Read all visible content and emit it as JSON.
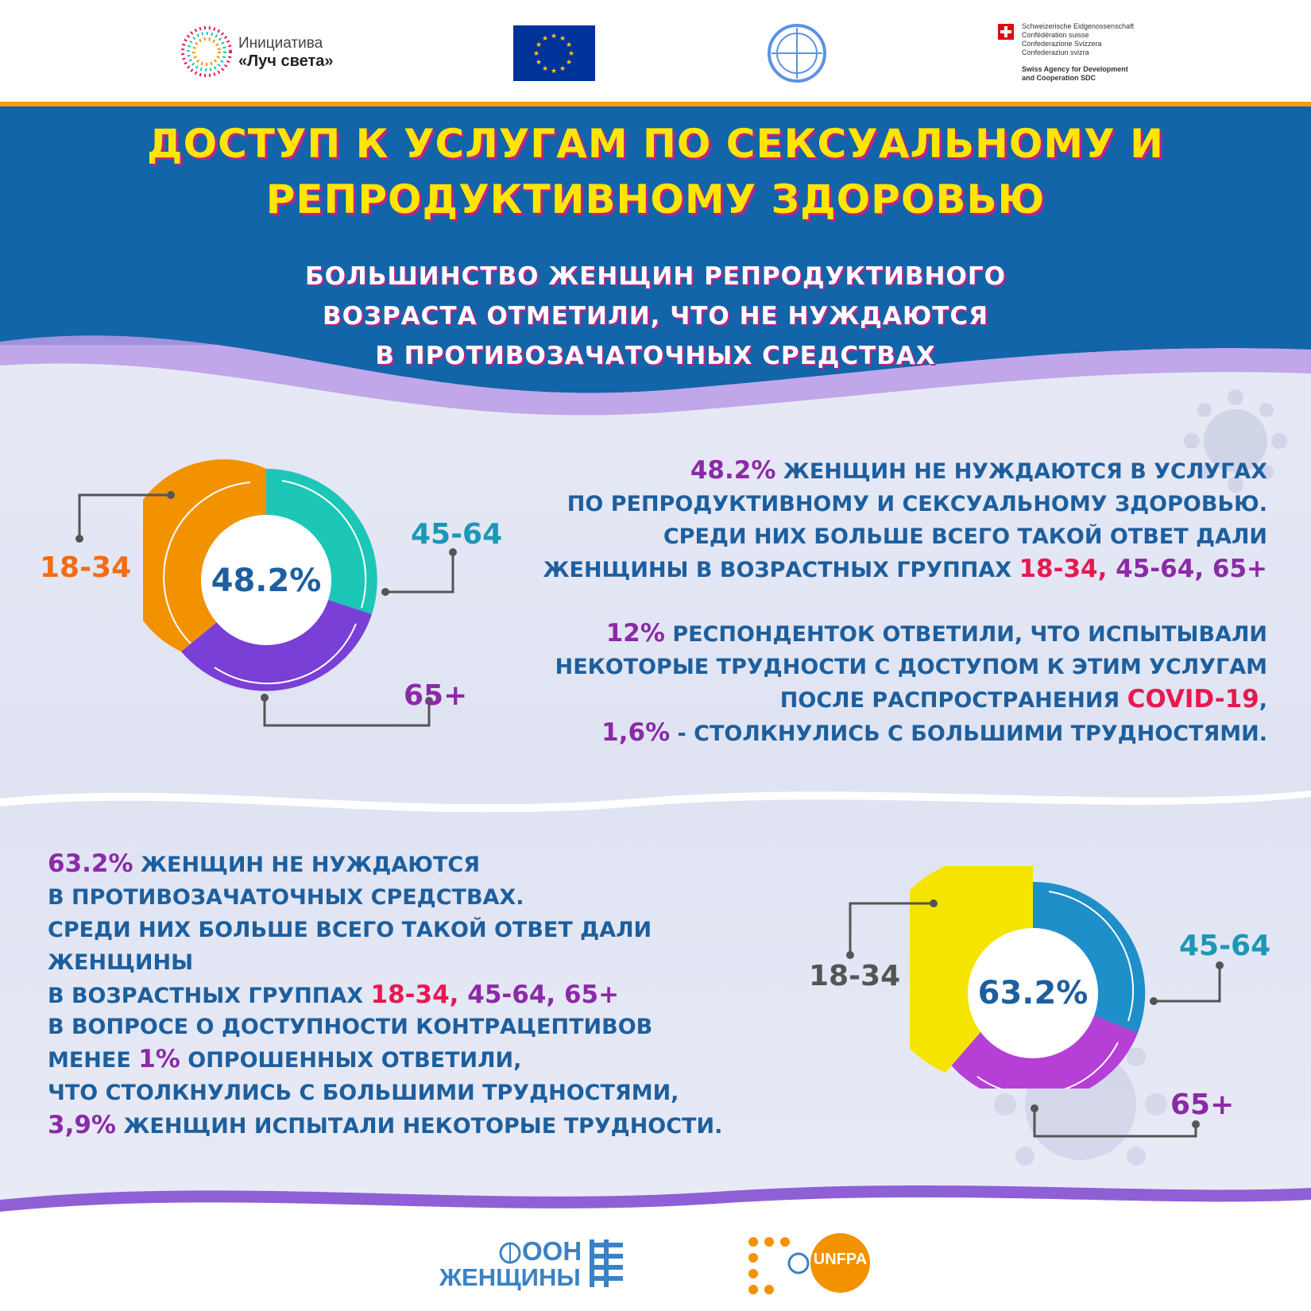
{
  "logos": {
    "luch_line1": "Инициатива",
    "luch_line2": "«Луч света»",
    "swiss_lines": [
      "Schweizerische Eidgenossenschaft",
      "Confédération suisse",
      "Confederazione Svizzera",
      "Confederaziun svizra"
    ],
    "sdc_lines": [
      "Swiss Agency for Development",
      "and Cooperation SDC"
    ],
    "un_women_line1": "ООН",
    "un_women_line2": "ЖЕНЩИНЫ",
    "unfpa": "UNFPA"
  },
  "header": {
    "title_line1": "ДОСТУП К УСЛУГАМ ПО СЕКСУАЛЬНОМУ И",
    "title_line2": "РЕПРОДУКТИВНОМУ ЗДОРОВЬЮ",
    "subtitle_line1": "БОЛЬШИНСТВО ЖЕНЩИН РЕПРОДУКТИВНОГО",
    "subtitle_line2": "ВОЗРАСТА ОТМЕТИЛИ, ЧТО НЕ НУЖДАЮТСЯ",
    "subtitle_line3": "В ПРОТИВОЗАЧАТОЧНЫХ СРЕДСТВАХ"
  },
  "section1": {
    "donut_center": "48.2%",
    "label_18_34": "18-34",
    "label_45_64": "45-64",
    "label_65": "65+",
    "p1_pct": "48.2%",
    "p1_l1": " ЖЕНЩИН НЕ НУЖДАЮТСЯ В УСЛУГАХ",
    "p1_l2": "ПО РЕПРОДУКТИВНОМУ И СЕКСУАЛЬНОМУ ЗДОРОВЬЮ.",
    "p1_l3": "СРЕДИ НИХ БОЛЬШЕ ВСЕГО ТАКОЙ ОТВЕТ ДАЛИ",
    "p1_l4": "ЖЕНЩИНЫ В ВОЗРАСТНЫХ ГРУППАХ ",
    "p1_g1": "18-34,",
    "p1_g2": " 45-64, 65+",
    "p2_pct": "12%",
    "p2_l1": " РЕСПОНДЕНТОК ОТВЕТИЛИ, ЧТО ИСПЫТЫВАЛИ",
    "p2_l2": "НЕКОТОРЫЕ ТРУДНОСТИ С ДОСТУПОМ К ЭТИМ УСЛУГАМ",
    "p2_l3": "ПОСЛЕ РАСПРОСТРАНЕНИЯ ",
    "p2_covid": "COVID-19",
    "p2_comma": ",",
    "p2_pct2": "1,6%",
    "p2_l4": " - СТОЛКНУЛИСЬ С БОЛЬШИМИ ТРУДНОСТЯМИ."
  },
  "section2": {
    "donut_center": "63.2%",
    "label_18_34": "18-34",
    "label_45_64": "45-64",
    "label_65": "65+",
    "p1_pct": "63.2%",
    "p1_l1": " ЖЕНЩИН НЕ НУЖДАЮТСЯ",
    "p1_l2": "В ПРОТИВОЗАЧАТОЧНЫХ СРЕДСТВАХ.",
    "p1_l3": "СРЕДИ НИХ БОЛЬШЕ ВСЕГО ТАКОЙ ОТВЕТ ДАЛИ ЖЕНЩИНЫ",
    "p1_l4": "В ВОЗРАСТНЫХ ГРУППАХ ",
    "p1_g1": "18-34,",
    "p1_g2": " 45-64, 65+",
    "p2_l1": "В ВОПРОСЕ О ДОСТУПНОСТИ КОНТРАЦЕПТИВОВ",
    "p2_l2a": "МЕНЕЕ ",
    "p2_pct": "1%",
    "p2_l2b": " ОПРОШЕННЫХ ОТВЕТИЛИ,",
    "p2_l3": "ЧТО СТОЛКНУЛИСЬ С БОЛЬШИМИ ТРУДНОСТЯМИ,",
    "p2_pct2": "3,9%",
    "p2_l4": " ЖЕНЩИН ИСПЫТАЛИ НЕКОТОРЫЕ ТРУДНОСТИ."
  },
  "colors": {
    "header_blue": "#1265a8",
    "title_yellow": "#ffe600",
    "text_blue": "#1d5f9e",
    "accent_purple": "#8b2aa8",
    "accent_red": "#e8184f",
    "orange": "#f39200",
    "teal": "#1cc7b8",
    "violet": "#7a3fd6",
    "yellow": "#f5e400",
    "blue": "#1e8fc8",
    "magenta": "#b63fd6"
  }
}
